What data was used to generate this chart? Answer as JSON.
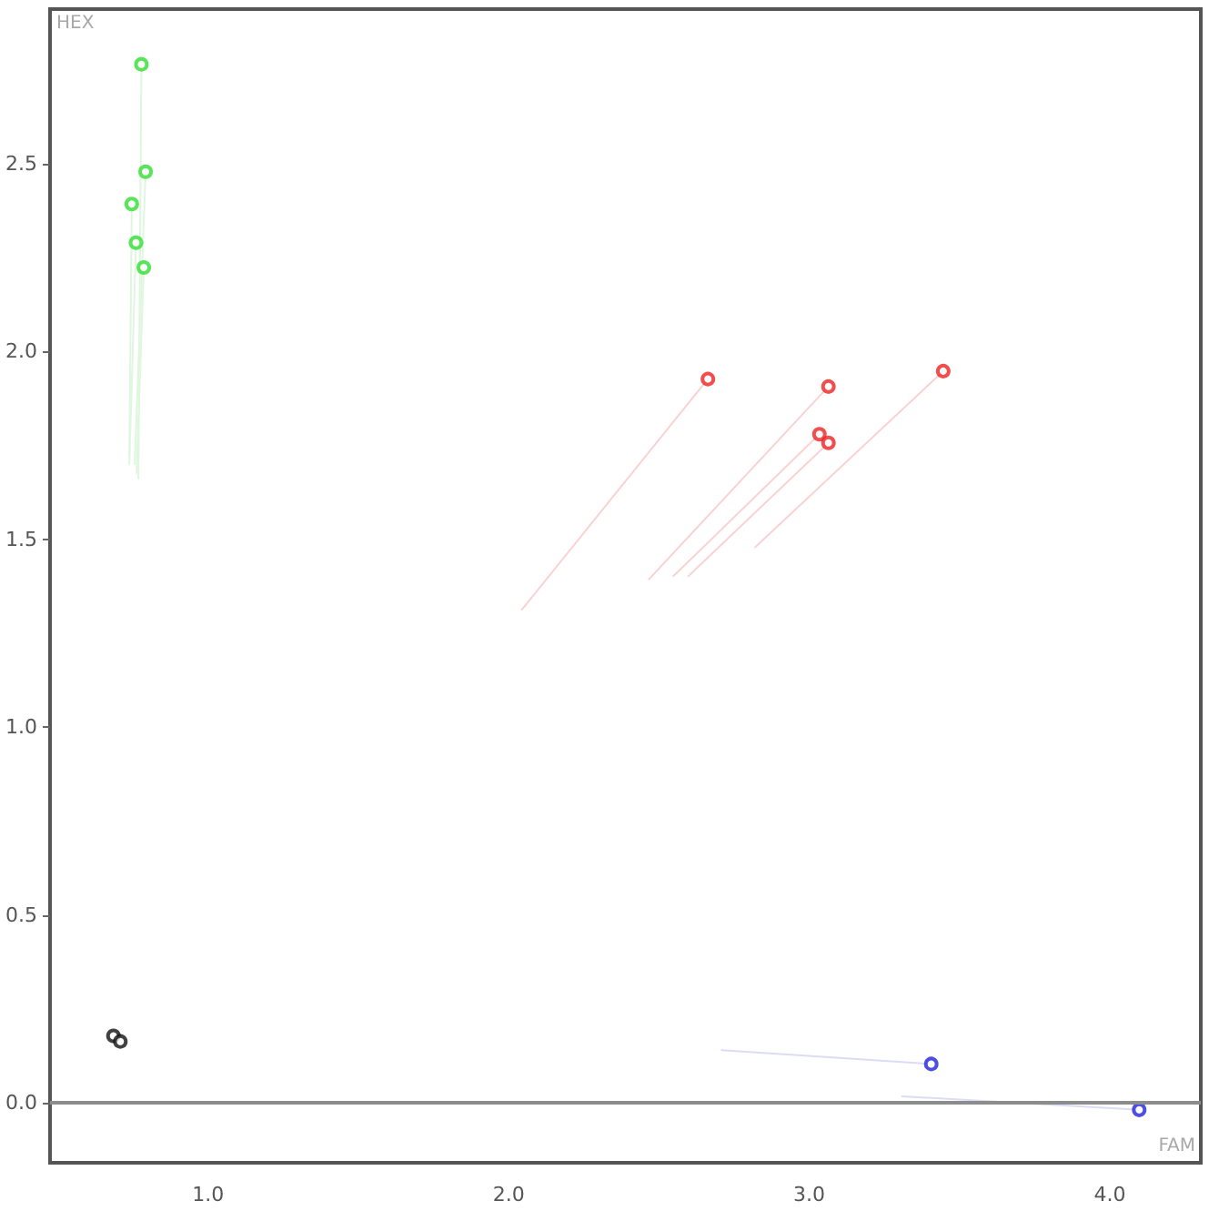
{
  "chart_data": {
    "type": "scatter",
    "xlabel": "FAM",
    "ylabel": "HEX",
    "marker": "circle",
    "xlim": [
      0.474,
      4.303
    ],
    "ylim": [
      -0.16,
      2.912
    ],
    "xticks": [
      {
        "value": 1,
        "label": "1.0"
      },
      {
        "value": 2,
        "label": "2.0"
      },
      {
        "value": 3,
        "label": "3.0"
      },
      {
        "value": 4,
        "label": "4.0"
      }
    ],
    "yticks": [
      {
        "value": 0,
        "label": "0.0"
      },
      {
        "value": 0.5,
        "label": "0.5"
      },
      {
        "value": 1,
        "label": "1.0"
      },
      {
        "value": 1.5,
        "label": "1.5"
      },
      {
        "value": 2,
        "label": "2.0"
      },
      {
        "value": 2.5,
        "label": "2.5"
      }
    ],
    "ref_lines": [
      {
        "axis": "y",
        "value": 0,
        "color": "#8c8c8c"
      }
    ],
    "series": [
      {
        "type": "line",
        "marker": "none",
        "color": "#dff6df",
        "x": [
          0.768,
          0.778
        ],
        "values": [
          1.662,
          2.765
        ]
      },
      {
        "type": "line",
        "marker": "none",
        "color": "#dff6df",
        "x": [
          0.756,
          0.792
        ],
        "values": [
          1.701,
          2.479
        ]
      },
      {
        "type": "line",
        "marker": "none",
        "color": "#dff6df",
        "x": [
          0.738,
          0.746
        ],
        "values": [
          1.725,
          2.393
        ]
      },
      {
        "type": "line",
        "marker": "none",
        "color": "#dff6df",
        "x": [
          0.738,
          0.76
        ],
        "values": [
          1.701,
          2.29
        ]
      },
      {
        "type": "line",
        "marker": "none",
        "color": "#dff6df",
        "x": [
          0.762,
          0.786
        ],
        "values": [
          1.676,
          2.224
        ]
      },
      {
        "type": "line",
        "marker": "none",
        "color": "#f9d3d3",
        "x": [
          2.044,
          2.663
        ],
        "values": [
          1.313,
          1.927
        ]
      },
      {
        "type": "line",
        "marker": "none",
        "color": "#f9d3d3",
        "x": [
          2.467,
          3.064
        ],
        "values": [
          1.394,
          1.907
        ]
      },
      {
        "type": "line",
        "marker": "none",
        "color": "#f9d3d3",
        "x": [
          2.548,
          3.034
        ],
        "values": [
          1.402,
          1.78
        ]
      },
      {
        "type": "line",
        "marker": "none",
        "color": "#f9d3d3",
        "x": [
          2.598,
          3.064
        ],
        "values": [
          1.402,
          1.757
        ]
      },
      {
        "type": "line",
        "marker": "none",
        "color": "#f9d3d3",
        "x": [
          2.82,
          3.446
        ],
        "values": [
          1.479,
          1.948
        ]
      },
      {
        "type": "line",
        "marker": "none",
        "color": "#dcdcf6",
        "x": [
          2.709,
          3.406
        ],
        "values": [
          0.14,
          0.103
        ]
      },
      {
        "type": "line",
        "marker": "none",
        "color": "#dcdcf6",
        "x": [
          3.309,
          4.098
        ],
        "values": [
          0.017,
          -0.019
        ]
      },
      {
        "color": "#2fdf2f",
        "x": [
          0.778,
          0.792,
          0.746,
          0.76,
          0.786
        ],
        "values": [
          2.765,
          2.479,
          2.393,
          2.29,
          2.224
        ]
      },
      {
        "color": "#ee2222",
        "x": [
          2.663,
          3.064,
          3.034,
          3.064,
          3.446
        ],
        "values": [
          1.927,
          1.907,
          1.78,
          1.757,
          1.948
        ]
      },
      {
        "color": "#2222dd",
        "x": [
          3.406,
          4.098
        ],
        "values": [
          0.103,
          -0.019
        ]
      },
      {
        "color": "#111111",
        "x": [
          0.685,
          0.708
        ],
        "values": [
          0.178,
          0.163
        ]
      }
    ]
  }
}
